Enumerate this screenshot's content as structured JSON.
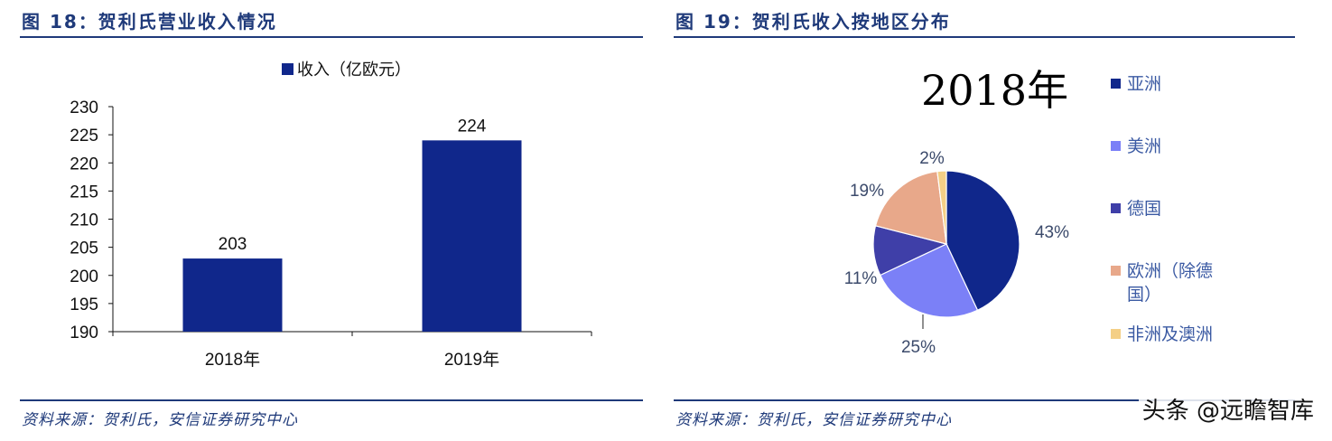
{
  "left": {
    "title": "图 18：贺利氏营业收入情况",
    "source": "资料来源：贺利氏，安信证券研究中心"
  },
  "right": {
    "title": "图 19：贺利氏收入按地区分布",
    "source": "资料来源：贺利氏，安信证券研究中心"
  },
  "watermark": "头条 @远瞻智库",
  "chart_data": [
    {
      "type": "bar",
      "categories": [
        "2018年",
        "2019年"
      ],
      "series": [
        {
          "name": "收入（亿欧元）",
          "values": [
            203,
            224
          ],
          "color": "#10278b"
        }
      ],
      "data_labels": [
        "203",
        "224"
      ],
      "ylim": [
        190,
        230
      ],
      "yticks": [
        190,
        195,
        200,
        205,
        210,
        215,
        220,
        225,
        230
      ],
      "legend": "top-center",
      "grid": false
    },
    {
      "type": "pie",
      "title": "2018年",
      "slices": [
        {
          "label": "亚洲",
          "value": 43,
          "pct_label": "43%",
          "color": "#10278b"
        },
        {
          "label": "美洲",
          "value": 25,
          "pct_label": "25%",
          "color": "#7b80f7"
        },
        {
          "label": "德国",
          "value": 11,
          "pct_label": "11%",
          "color": "#3f3fa8"
        },
        {
          "label": "欧洲（除德国）",
          "value": 19,
          "pct_label": "19%",
          "color": "#e8a88a"
        },
        {
          "label": "非洲及澳洲",
          "value": 2,
          "pct_label": "2%",
          "color": "#f4cf86"
        }
      ],
      "legend": "right"
    }
  ]
}
